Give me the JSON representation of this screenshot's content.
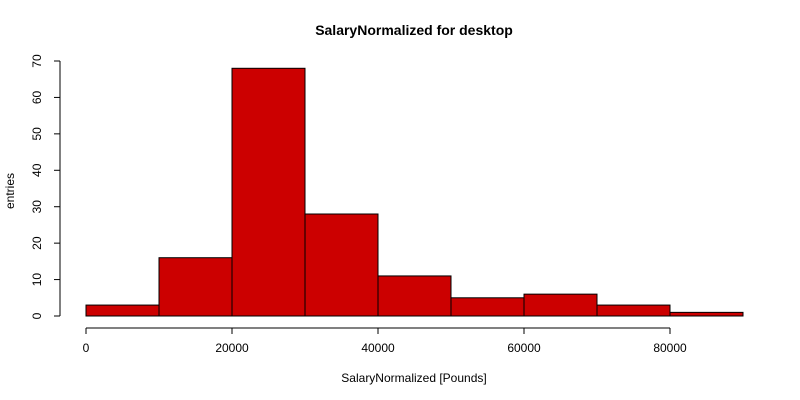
{
  "chart_data": {
    "type": "bar",
    "title": "SalaryNormalized for desktop",
    "xlabel": "SalaryNormalized [Pounds]",
    "ylabel": "entries",
    "bins": [
      {
        "start": 0,
        "end": 10000,
        "value": 3
      },
      {
        "start": 10000,
        "end": 20000,
        "value": 16
      },
      {
        "start": 20000,
        "end": 30000,
        "value": 68
      },
      {
        "start": 30000,
        "end": 40000,
        "value": 28
      },
      {
        "start": 40000,
        "end": 50000,
        "value": 11
      },
      {
        "start": 50000,
        "end": 60000,
        "value": 5
      },
      {
        "start": 60000,
        "end": 70000,
        "value": 6
      },
      {
        "start": 70000,
        "end": 80000,
        "value": 3
      },
      {
        "start": 80000,
        "end": 90000,
        "value": 1
      }
    ],
    "xlim": [
      0,
      90000
    ],
    "ylim": [
      0,
      70
    ],
    "x_ticks": [
      0,
      20000,
      40000,
      60000,
      80000
    ],
    "y_ticks": [
      0,
      10,
      20,
      30,
      40,
      50,
      60,
      70
    ],
    "bar_color": "#cc0000",
    "edge_color": "#000000",
    "grid": false,
    "legend": false
  }
}
